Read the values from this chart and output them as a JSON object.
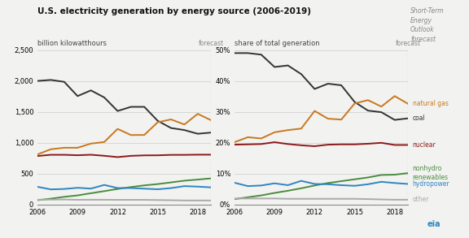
{
  "title": "U.S. electricity generation by energy source (2006-2019)",
  "ylabel_left": "billion kilowatthours",
  "ylabel_right": "share of total generation",
  "forecast_label": "forecast",
  "steo_label": "Short-Term\nEnergy\nOutlook\nforecast",
  "years": [
    2006,
    2007,
    2008,
    2009,
    2010,
    2011,
    2012,
    2013,
    2014,
    2015,
    2016,
    2017,
    2018,
    2019
  ],
  "coal_abs": [
    2000,
    2016,
    1985,
    1755,
    1847,
    1733,
    1514,
    1581,
    1581,
    1356,
    1239,
    1206,
    1146,
    1165
  ],
  "natgas_abs": [
    813,
    896,
    920,
    920,
    987,
    1013,
    1225,
    1125,
    1127,
    1332,
    1378,
    1296,
    1468,
    1365
  ],
  "nuclear_abs": [
    787,
    806,
    806,
    799,
    807,
    790,
    769,
    789,
    797,
    798,
    805,
    805,
    808,
    808
  ],
  "nonhydro_abs": [
    73,
    97,
    127,
    150,
    185,
    219,
    254,
    285,
    312,
    333,
    360,
    388,
    406,
    425
  ],
  "hydro_abs": [
    289,
    247,
    254,
    273,
    260,
    319,
    269,
    269,
    259,
    249,
    268,
    300,
    292,
    280
  ],
  "other_abs": [
    80,
    82,
    84,
    79,
    80,
    80,
    78,
    78,
    78,
    75,
    72,
    68,
    68,
    68
  ],
  "coal_pct": [
    49.0,
    49.0,
    48.5,
    44.5,
    45.0,
    42.2,
    37.4,
    39.1,
    38.6,
    33.2,
    30.4,
    29.9,
    27.4,
    27.9
  ],
  "natgas_pct": [
    20.2,
    21.8,
    21.4,
    23.4,
    24.1,
    24.6,
    30.3,
    27.8,
    27.5,
    32.7,
    33.8,
    31.7,
    35.1,
    32.6
  ],
  "nuclear_pct": [
    19.4,
    19.5,
    19.6,
    20.2,
    19.6,
    19.2,
    18.9,
    19.4,
    19.5,
    19.5,
    19.7,
    20.0,
    19.3,
    19.3
  ],
  "nonhydro_pct": [
    1.8,
    2.4,
    3.0,
    3.8,
    4.5,
    5.3,
    6.2,
    7.0,
    7.6,
    8.2,
    8.8,
    9.6,
    9.7,
    10.2
  ],
  "hydro_pct": [
    7.1,
    6.0,
    6.2,
    6.9,
    6.3,
    7.7,
    6.7,
    6.6,
    6.3,
    6.1,
    6.6,
    7.4,
    7.0,
    6.7
  ],
  "other_pct": [
    2.0,
    2.0,
    2.0,
    2.0,
    1.9,
    1.9,
    1.9,
    1.9,
    1.9,
    1.9,
    1.8,
    1.7,
    1.6,
    1.6
  ],
  "color_coal": "#333333",
  "color_natgas": "#c87820",
  "color_nuclear": "#8b1a1a",
  "color_nonhydro": "#4a8c3f",
  "color_hydro": "#2e86c1",
  "color_other": "#aaaaaa",
  "ylim_left": [
    0,
    2500
  ],
  "ylim_right": [
    0,
    50
  ],
  "yticks_left": [
    0,
    500,
    1000,
    1500,
    2000,
    2500
  ],
  "yticks_right": [
    0,
    10,
    20,
    30,
    40,
    50
  ],
  "xticks": [
    2006,
    2009,
    2012,
    2015,
    2018
  ],
  "forecast_x": 2019,
  "xmin": 2006,
  "xmax": 2019,
  "bg_color": "#f2f2f0",
  "grid_color": "#cccccc"
}
